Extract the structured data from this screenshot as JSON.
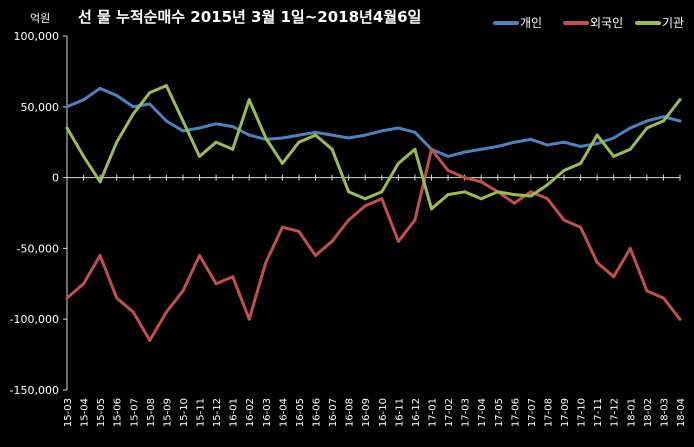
{
  "chart_data": {
    "type": "line",
    "title": "선 물  누적순매수  2015년 3월 1일~2018년4월6일",
    "unit_label": "억원",
    "ylim": [
      -150000,
      100000
    ],
    "yticks": [
      100000,
      50000,
      0,
      -50000,
      -100000,
      -150000
    ],
    "ytick_labels": [
      "100,000",
      "50,000",
      "0",
      "-50,000",
      "-100,000",
      "-150,000"
    ],
    "xlim": [
      "2015-03",
      "2018-04"
    ],
    "xtick_labels": [
      "15-03",
      "15-04",
      "15-05",
      "15-06",
      "15-07",
      "15-08",
      "15-09",
      "15-10",
      "15-11",
      "15-12",
      "16-01",
      "16-02",
      "16-03",
      "16-04",
      "16-05",
      "16-06",
      "16-07",
      "16-08",
      "16-09",
      "16-10",
      "16-11",
      "16-12",
      "17-01",
      "17-02",
      "17-03",
      "17-04",
      "17-05",
      "17-06",
      "17-07",
      "17-08",
      "17-09",
      "17-10",
      "17-11",
      "17-12",
      "18-01",
      "18-02",
      "18-03",
      "18-04"
    ],
    "x": [
      "2015-03",
      "2015-04",
      "2015-05",
      "2015-06",
      "2015-07",
      "2015-08",
      "2015-09",
      "2015-10",
      "2015-11",
      "2015-12",
      "2016-01",
      "2016-02",
      "2016-03",
      "2016-04",
      "2016-05",
      "2016-06",
      "2016-07",
      "2016-08",
      "2016-09",
      "2016-10",
      "2016-11",
      "2016-12",
      "2017-01",
      "2017-02",
      "2017-03",
      "2017-04",
      "2017-05",
      "2017-06",
      "2017-07",
      "2017-08",
      "2017-09",
      "2017-10",
      "2017-11",
      "2017-12",
      "2018-01",
      "2018-02",
      "2018-03",
      "2018-04"
    ],
    "grid": false,
    "legend_position": "top-right",
    "series": [
      {
        "name": "개인",
        "color": "#4f81bd",
        "values": [
          50000,
          55000,
          63000,
          58000,
          50000,
          52000,
          40000,
          33000,
          35000,
          38000,
          36000,
          30000,
          27000,
          28000,
          30000,
          32000,
          30000,
          28000,
          30000,
          33000,
          35000,
          32000,
          20000,
          15000,
          18000,
          20000,
          22000,
          25000,
          27000,
          23000,
          25000,
          22000,
          24000,
          28000,
          35000,
          40000,
          43000,
          40000
        ]
      },
      {
        "name": "외국인",
        "color": "#c0504d",
        "values": [
          -85000,
          -75000,
          -55000,
          -85000,
          -95000,
          -115000,
          -95000,
          -80000,
          -55000,
          -75000,
          -70000,
          -100000,
          -60000,
          -35000,
          -38000,
          -55000,
          -45000,
          -30000,
          -20000,
          -15000,
          -45000,
          -30000,
          20000,
          5000,
          0,
          -3000,
          -10000,
          -18000,
          -10000,
          -15000,
          -30000,
          -35000,
          -60000,
          -70000,
          -50000,
          -80000,
          -85000,
          -100000
        ]
      },
      {
        "name": "기관",
        "color": "#9bbb59",
        "values": [
          35000,
          15000,
          -3000,
          25000,
          45000,
          60000,
          65000,
          40000,
          15000,
          25000,
          20000,
          55000,
          28000,
          10000,
          25000,
          30000,
          20000,
          -10000,
          -15000,
          -10000,
          10000,
          20000,
          -22000,
          -12000,
          -10000,
          -15000,
          -10000,
          -12000,
          -13000,
          -5000,
          5000,
          10000,
          30000,
          15000,
          20000,
          35000,
          40000,
          55000
        ]
      }
    ]
  }
}
